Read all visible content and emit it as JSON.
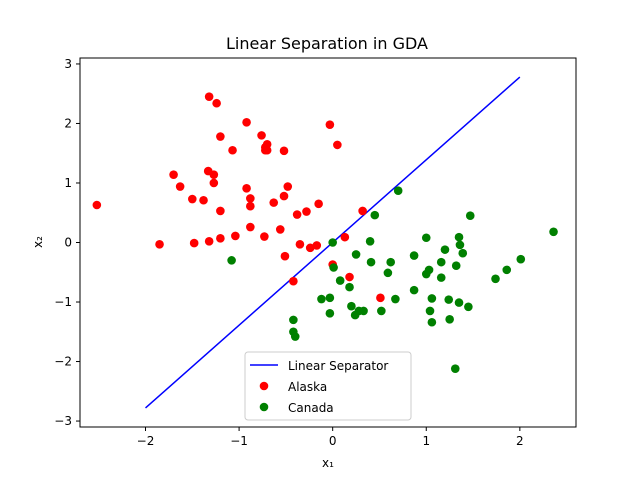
{
  "chart_data": {
    "type": "scatter",
    "title": "Linear Separation in GDA",
    "xlabel": "x₁",
    "ylabel": "x₂",
    "xlim": [
      -2.7,
      2.6
    ],
    "ylim": [
      -3.1,
      3.1
    ],
    "xticks": [
      -2,
      -1,
      0,
      1,
      2
    ],
    "yticks": [
      -3,
      -2,
      -1,
      0,
      1,
      2,
      3
    ],
    "grid": false,
    "legend_position": "lower center",
    "line": {
      "name": "Linear Separator",
      "color": "#0000ff",
      "x": [
        -2.0,
        2.0
      ],
      "y": [
        -2.78,
        2.78
      ]
    },
    "series": [
      {
        "name": "Alaska",
        "color": "#ff0000",
        "points": [
          [
            -2.52,
            0.63
          ],
          [
            -1.85,
            -0.03
          ],
          [
            -1.7,
            1.14
          ],
          [
            -1.63,
            0.94
          ],
          [
            -1.5,
            0.73
          ],
          [
            -1.48,
            -0.01
          ],
          [
            -1.38,
            0.71
          ],
          [
            -1.33,
            1.2
          ],
          [
            -1.32,
            2.45
          ],
          [
            -1.32,
            0.02
          ],
          [
            -1.27,
            1.14
          ],
          [
            -1.27,
            1.0
          ],
          [
            -1.24,
            2.34
          ],
          [
            -1.2,
            1.78
          ],
          [
            -1.2,
            0.53
          ],
          [
            -1.2,
            0.07
          ],
          [
            -1.07,
            1.55
          ],
          [
            -1.04,
            0.11
          ],
          [
            -0.92,
            2.02
          ],
          [
            -0.92,
            0.91
          ],
          [
            -0.88,
            0.74
          ],
          [
            -0.88,
            0.61
          ],
          [
            -0.88,
            0.26
          ],
          [
            -0.76,
            1.8
          ],
          [
            -0.72,
            1.6
          ],
          [
            -0.72,
            1.55
          ],
          [
            -0.7,
            1.55
          ],
          [
            -0.73,
            0.1
          ],
          [
            -0.7,
            1.65
          ],
          [
            -0.63,
            0.67
          ],
          [
            -0.56,
            0.22
          ],
          [
            -0.52,
            1.54
          ],
          [
            -0.52,
            0.78
          ],
          [
            -0.51,
            -0.23
          ],
          [
            -0.48,
            0.94
          ],
          [
            -0.42,
            -0.65
          ],
          [
            -0.38,
            0.47
          ],
          [
            -0.35,
            -0.03
          ],
          [
            -0.28,
            0.52
          ],
          [
            -0.24,
            -0.09
          ],
          [
            -0.17,
            -0.05
          ],
          [
            -0.15,
            0.65
          ],
          [
            -0.03,
            1.98
          ],
          [
            0.0,
            -0.37
          ],
          [
            0.05,
            1.64
          ],
          [
            0.13,
            0.09
          ],
          [
            0.18,
            -0.58
          ],
          [
            0.32,
            0.53
          ],
          [
            0.51,
            -0.93
          ]
        ]
      },
      {
        "name": "Canada",
        "color": "#008000",
        "points": [
          [
            -1.08,
            -0.3
          ],
          [
            -0.42,
            -1.3
          ],
          [
            -0.42,
            -1.5
          ],
          [
            -0.4,
            -1.58
          ],
          [
            -0.12,
            -0.95
          ],
          [
            -0.03,
            -0.93
          ],
          [
            -0.03,
            -1.19
          ],
          [
            0.0,
            0.0
          ],
          [
            0.01,
            -0.42
          ],
          [
            0.08,
            -0.64
          ],
          [
            0.18,
            -0.75
          ],
          [
            0.2,
            -1.07
          ],
          [
            0.24,
            -1.22
          ],
          [
            0.25,
            -0.2
          ],
          [
            0.28,
            -1.15
          ],
          [
            0.33,
            -1.15
          ],
          [
            0.4,
            0.02
          ],
          [
            0.41,
            -0.33
          ],
          [
            0.45,
            0.46
          ],
          [
            0.52,
            -1.15
          ],
          [
            0.59,
            -0.51
          ],
          [
            0.62,
            -0.33
          ],
          [
            0.67,
            -0.95
          ],
          [
            0.7,
            0.87
          ],
          [
            0.87,
            -0.22
          ],
          [
            0.87,
            -0.8
          ],
          [
            1.0,
            0.08
          ],
          [
            1.0,
            -0.53
          ],
          [
            1.03,
            -0.46
          ],
          [
            1.04,
            -1.15
          ],
          [
            1.06,
            -1.34
          ],
          [
            1.06,
            -0.94
          ],
          [
            1.16,
            -0.33
          ],
          [
            1.16,
            -0.59
          ],
          [
            1.2,
            -0.12
          ],
          [
            1.24,
            -0.96
          ],
          [
            1.25,
            -1.29
          ],
          [
            1.31,
            -2.12
          ],
          [
            1.32,
            -0.39
          ],
          [
            1.35,
            -1.01
          ],
          [
            1.35,
            0.09
          ],
          [
            1.36,
            -0.04
          ],
          [
            1.39,
            -0.18
          ],
          [
            1.45,
            -1.08
          ],
          [
            1.47,
            0.45
          ],
          [
            1.74,
            -0.61
          ],
          [
            1.86,
            -0.46
          ],
          [
            2.01,
            -0.28
          ],
          [
            2.36,
            0.18
          ]
        ]
      }
    ]
  }
}
